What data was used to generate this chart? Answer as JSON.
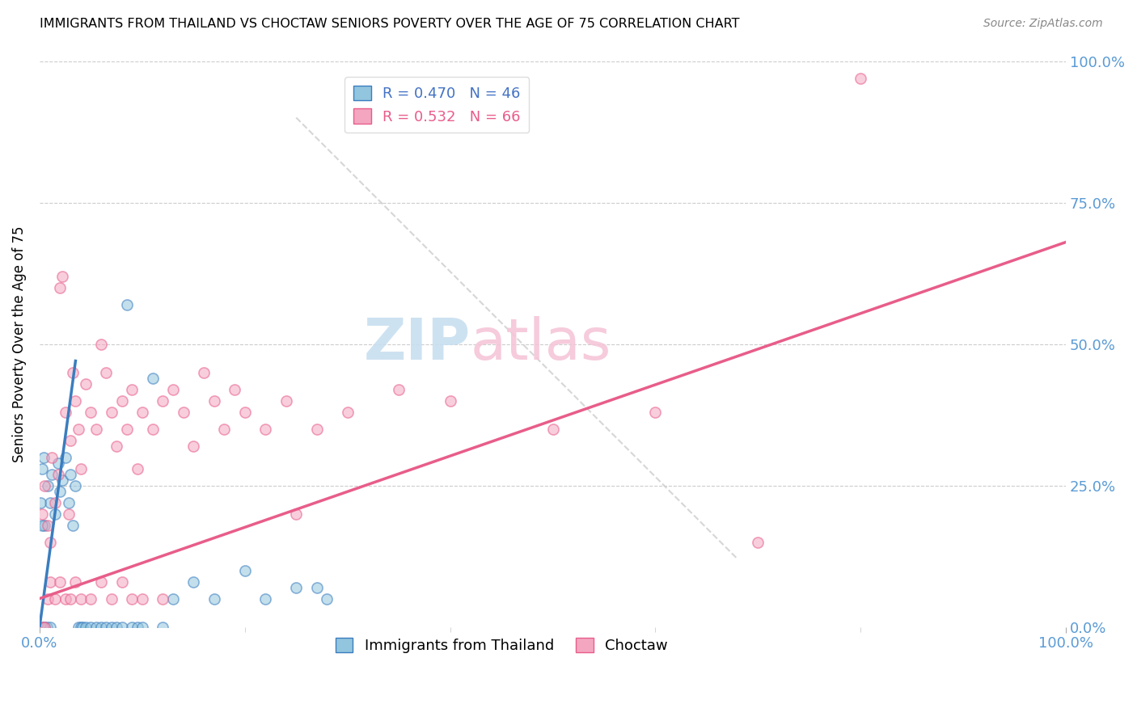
{
  "title": "IMMIGRANTS FROM THAILAND VS CHOCTAW SENIORS POVERTY OVER THE AGE OF 75 CORRELATION CHART",
  "source": "Source: ZipAtlas.com",
  "ylabel": "Seniors Poverty Over the Age of 75",
  "color_blue": "#92c5de",
  "color_pink": "#f4a6c0",
  "color_blue_line": "#3a7dbf",
  "color_pink_line": "#e85d8a",
  "color_blue_text": "#4472c4",
  "color_right_axis": "#5b9bd5",
  "watermark_color": "#c8dff0",
  "watermark_pink": "#f5c6d8",
  "thailand_R": 0.47,
  "thailand_N": 46,
  "choctaw_R": 0.532,
  "choctaw_N": 66,
  "th_x": [
    0.2,
    0.4,
    0.5,
    0.8,
    1.0,
    1.2,
    1.5,
    1.8,
    2.0,
    2.2,
    2.5,
    2.8,
    3.0,
    3.2,
    3.5,
    3.8,
    4.0,
    4.2,
    4.5,
    5.0,
    5.5,
    6.0,
    6.5,
    7.0,
    7.5,
    8.0,
    8.5,
    9.0,
    9.5,
    10.0,
    11.0,
    12.0,
    13.0,
    15.0,
    17.0,
    20.0,
    22.0,
    25.0,
    27.0,
    28.0,
    0.1,
    0.2,
    0.3,
    0.5,
    0.7,
    1.0
  ],
  "th_y": [
    28.0,
    30.0,
    18.0,
    25.0,
    22.0,
    27.0,
    20.0,
    29.0,
    24.0,
    26.0,
    30.0,
    22.0,
    27.0,
    18.0,
    25.0,
    0.0,
    0.0,
    0.0,
    0.0,
    0.0,
    0.0,
    0.0,
    0.0,
    0.0,
    0.0,
    0.0,
    57.0,
    0.0,
    0.0,
    0.0,
    44.0,
    0.0,
    5.0,
    8.0,
    5.0,
    10.0,
    5.0,
    7.0,
    7.0,
    5.0,
    22.0,
    18.0,
    0.0,
    0.0,
    0.0,
    0.0
  ],
  "ch_x": [
    0.2,
    0.5,
    0.8,
    1.0,
    1.2,
    1.5,
    1.8,
    2.0,
    2.2,
    2.5,
    2.8,
    3.0,
    3.2,
    3.5,
    3.8,
    4.0,
    4.5,
    5.0,
    5.5,
    6.0,
    6.5,
    7.0,
    7.5,
    8.0,
    8.5,
    9.0,
    9.5,
    10.0,
    11.0,
    12.0,
    13.0,
    14.0,
    15.0,
    16.0,
    17.0,
    18.0,
    19.0,
    20.0,
    22.0,
    24.0,
    25.0,
    27.0,
    30.0,
    35.0,
    40.0,
    50.0,
    60.0,
    70.0,
    80.0,
    0.3,
    0.5,
    0.8,
    1.0,
    1.5,
    2.0,
    2.5,
    3.0,
    3.5,
    4.0,
    5.0,
    6.0,
    7.0,
    8.0,
    9.0,
    10.0,
    12.0
  ],
  "ch_y": [
    20.0,
    25.0,
    18.0,
    15.0,
    30.0,
    22.0,
    27.0,
    60.0,
    62.0,
    38.0,
    20.0,
    33.0,
    45.0,
    40.0,
    35.0,
    28.0,
    43.0,
    38.0,
    35.0,
    50.0,
    45.0,
    38.0,
    32.0,
    40.0,
    35.0,
    42.0,
    28.0,
    38.0,
    35.0,
    40.0,
    42.0,
    38.0,
    32.0,
    45.0,
    40.0,
    35.0,
    42.0,
    38.0,
    35.0,
    40.0,
    20.0,
    35.0,
    38.0,
    42.0,
    40.0,
    35.0,
    38.0,
    15.0,
    97.0,
    0.0,
    0.0,
    5.0,
    8.0,
    5.0,
    8.0,
    5.0,
    5.0,
    8.0,
    5.0,
    5.0,
    8.0,
    5.0,
    8.0,
    5.0,
    5.0,
    5.0
  ]
}
